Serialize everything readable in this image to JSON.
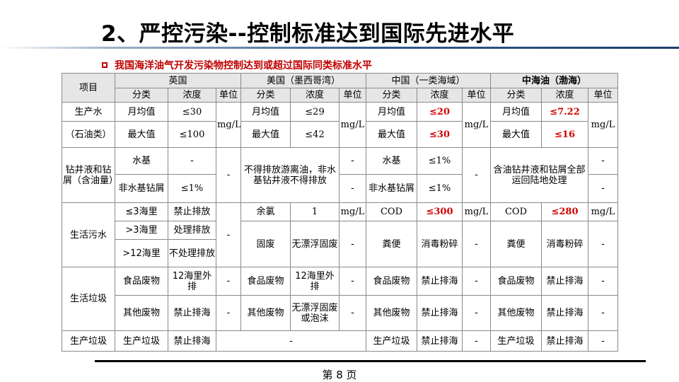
{
  "title": "2、严控污染--控制标准达到国际先进水平",
  "subtitle": "我国海洋油气开发污染物控制达到或超过国际同类标准水平",
  "page_label": "第 8 页",
  "colors": {
    "highlight": "#d00000",
    "header_bg": "#e6e6e6",
    "border": "#8a8a8a"
  },
  "table": {
    "item_header": "项目",
    "regions": [
      "英国",
      "美国（墨西哥湾）",
      "中国（一类海域）",
      "中海油（渤海）"
    ],
    "sub_headers": [
      "分类",
      "浓度",
      "单位"
    ],
    "rows": {
      "prod_water_label_1": "生产水",
      "prod_water_label_2": "（石油类）",
      "monthly": "月均值",
      "maximum": "最大值",
      "uk_monthly": "≤30",
      "uk_max": "≤100",
      "us_monthly": "≤29",
      "us_max": "≤42",
      "cn_monthly": "≤20",
      "cn_max": "≤30",
      "cnooc_monthly": "≤7.22",
      "cnooc_max": "≤16",
      "unit_mgl": "mg/L",
      "drill_label": "钻井液和钻屑（含油量）",
      "water_based": "水基",
      "non_water_based": "非水基钻屑",
      "dash": "-",
      "le1": "≤1%",
      "us_drill": "不得排放游离油，非水基钻井液不得排放",
      "cnooc_drill": "含油钻井液和钻屑全部运回陆地处理",
      "sewage_label": "生活污水",
      "le3nm": "≤3海里",
      "gt3nm": ">3海里",
      "gt12nm": ">12海里",
      "no_discharge": "禁止排放",
      "treat_discharge": "处理排放",
      "untreated_discharge": "不处理排放",
      "residual_cl": "余氯",
      "one": "1",
      "cod": "COD",
      "cn_cod": "≤300",
      "cnooc_cod": "≤280",
      "solids": "固废",
      "no_floating": "无漂浮固废",
      "feces": "粪便",
      "disinfect": "消毒粉碎",
      "garbage_label": "生活垃圾",
      "food_waste": "食品废物",
      "beyond_12nm": "12海里外排",
      "other_waste": "其他废物",
      "no_sea_discharge": "禁止排海",
      "no_floating_foam": "无漂浮固废或泡沫",
      "prod_garbage": "生产垃圾"
    }
  }
}
